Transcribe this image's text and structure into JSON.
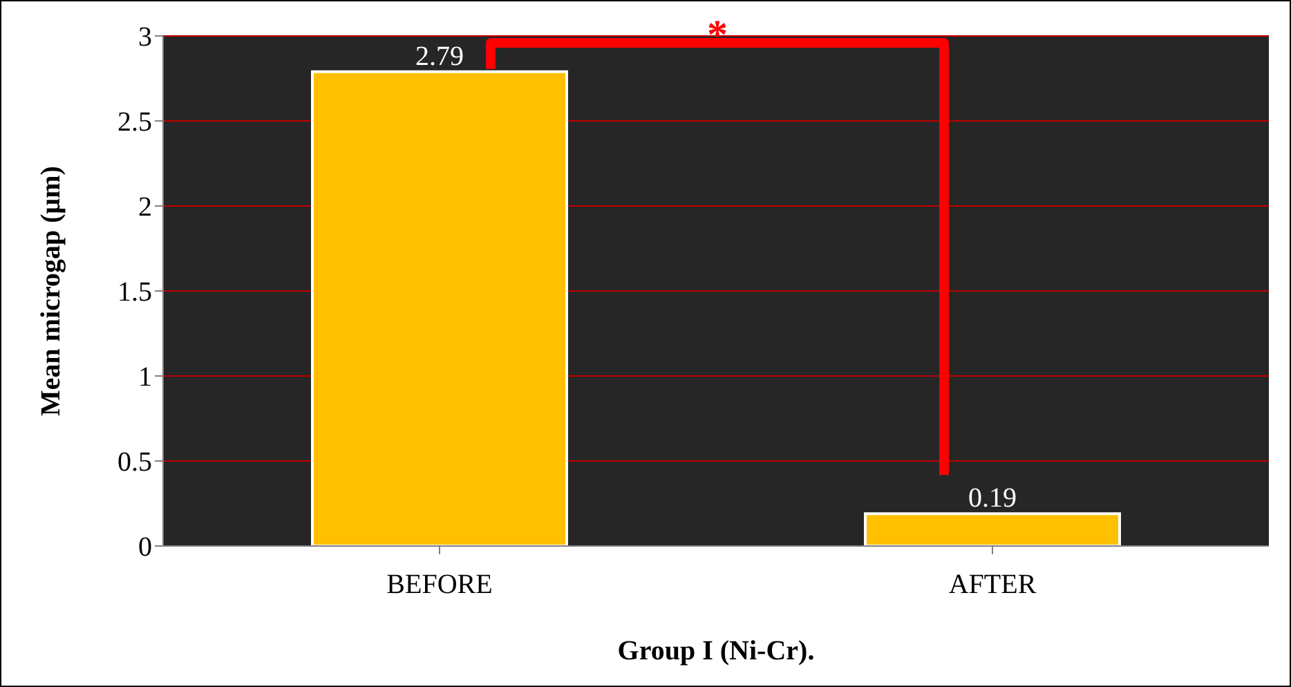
{
  "chart_data": {
    "type": "bar",
    "categories": [
      "BEFORE",
      "AFTER"
    ],
    "values": [
      2.79,
      0.19
    ],
    "color": "#ffc000",
    "data_labels": true,
    "ylim": [
      0,
      3
    ],
    "yticks": [
      0,
      0.5,
      1,
      1.5,
      2,
      2.5,
      3
    ],
    "grid": "y",
    "xlabel": "Group I (Ni-Cr).",
    "ylabel": "Mean microgap (μm)",
    "annotations": [
      "*"
    ]
  }
}
